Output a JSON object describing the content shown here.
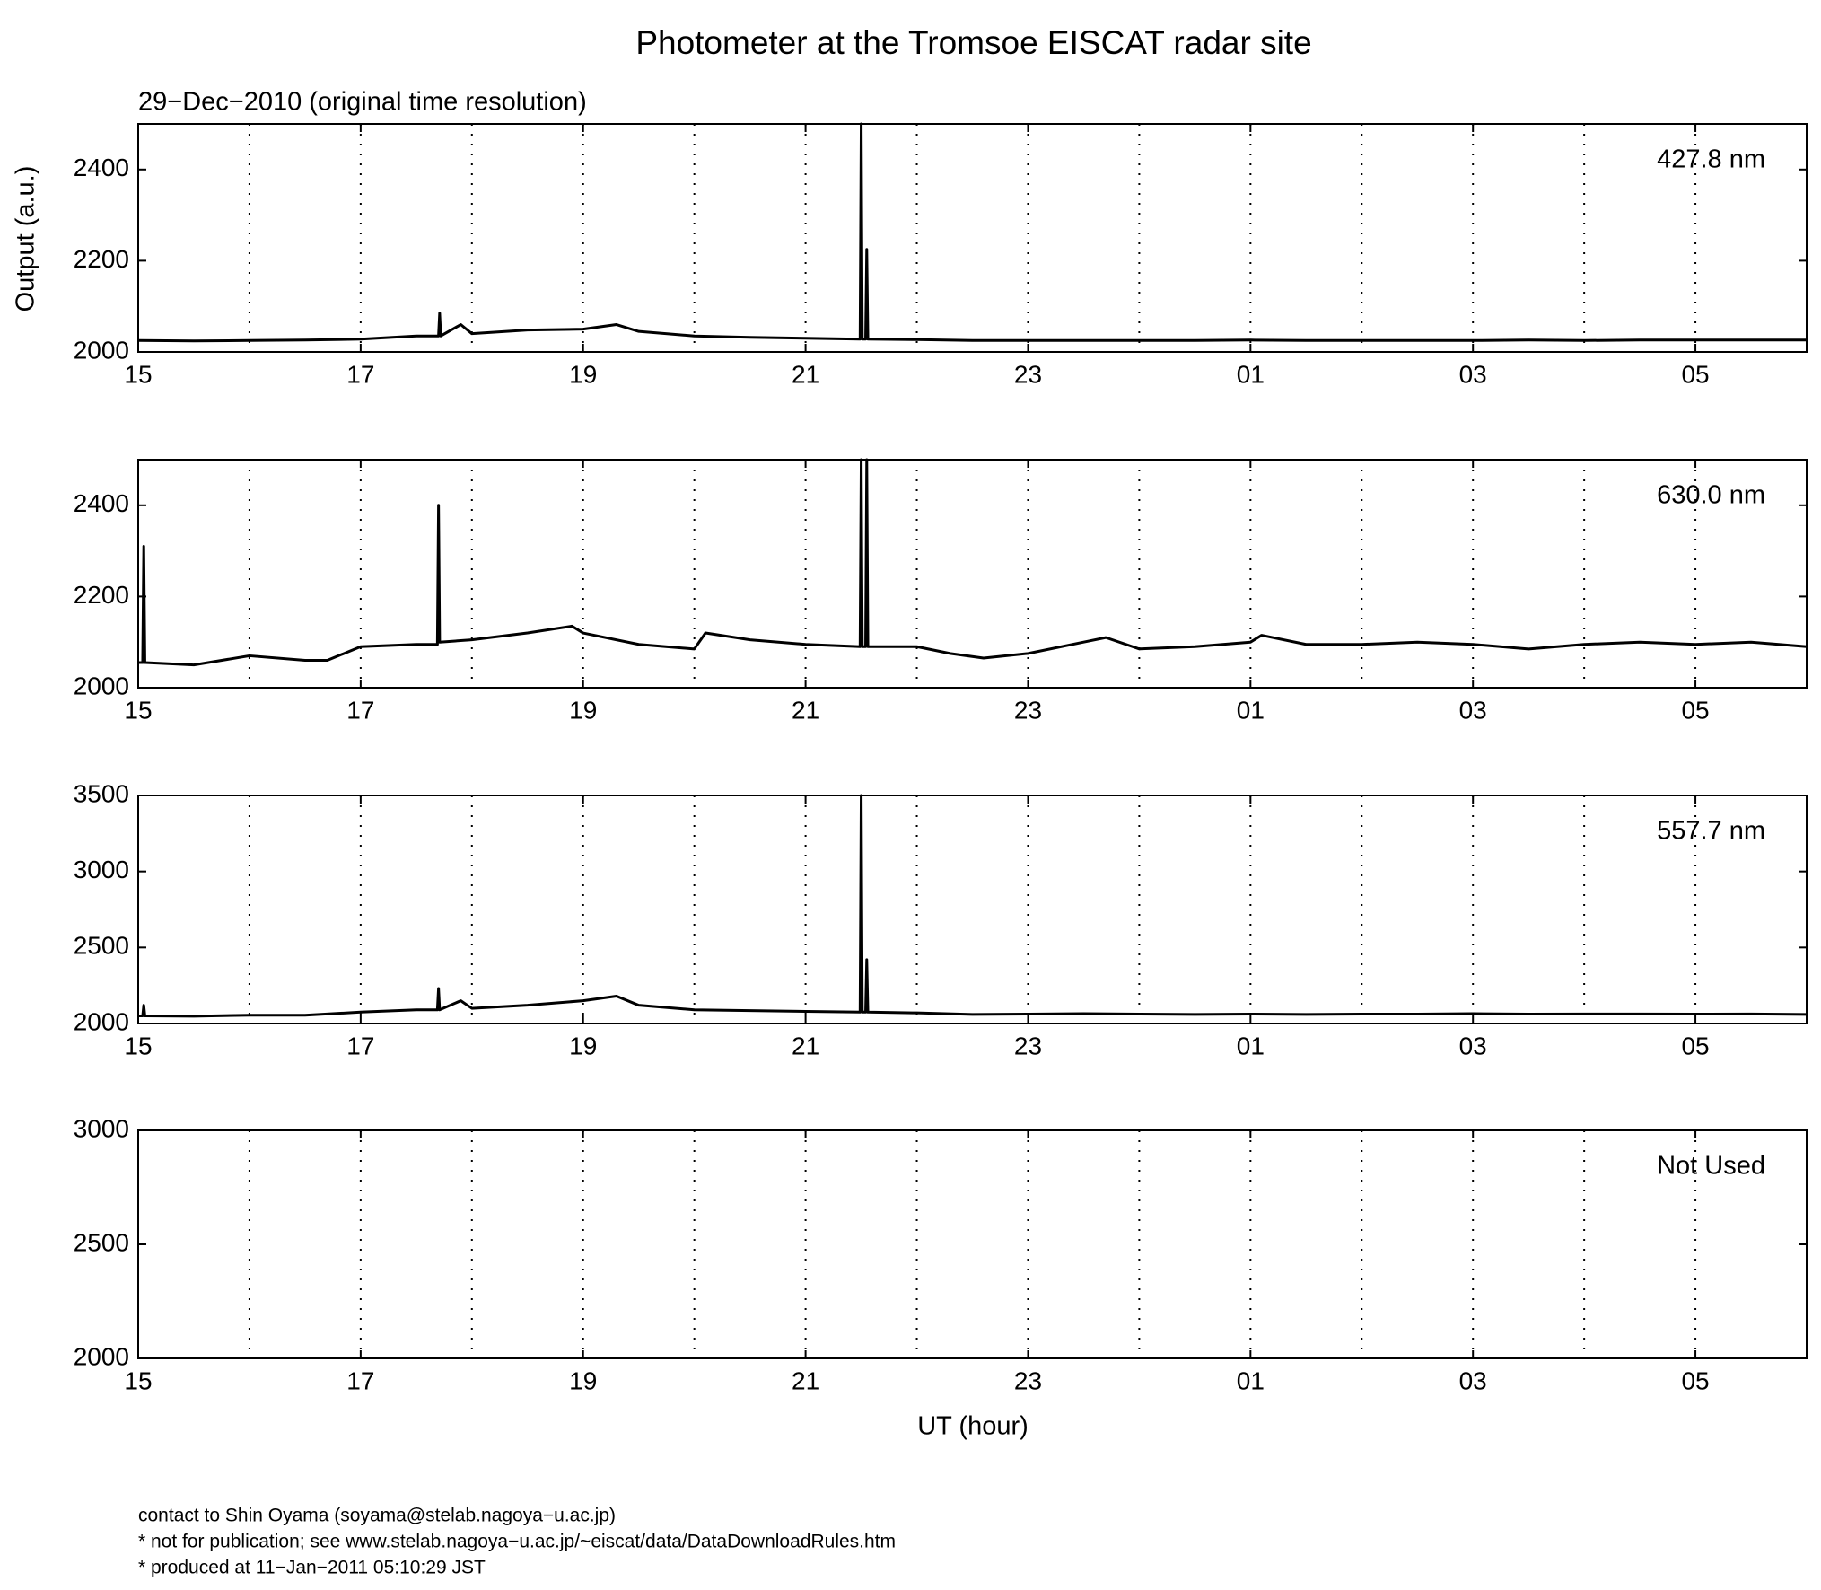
{
  "title": "Photometer at the Tromsoe EISCAT radar site",
  "subtitle": "29−Dec−2010 (original time resolution)",
  "ylabel": "Output (a.u.)",
  "xlabel": "UT (hour)",
  "footer": [
    "contact to Shin Oyama (soyama@stelab.nagoya−u.ac.jp)",
    "* not for publication; see www.stelab.nagoya−u.ac.jp/~eiscat/data/DataDownloadRules.htm",
    "* produced at 11−Jan−2011 05:10:29 JST"
  ],
  "chart_data": [
    {
      "type": "line",
      "label": "427.8 nm",
      "color": "#000000",
      "xlim": [
        15,
        30
      ],
      "ylim": [
        2000,
        2500
      ],
      "xticks": [
        15,
        17,
        19,
        21,
        23,
        {
          "value": 25,
          "label": "01"
        },
        {
          "value": 27,
          "label": "03"
        },
        {
          "value": 29,
          "label": "05"
        }
      ],
      "minor_xgrid": [
        16,
        18,
        20,
        22,
        24,
        26,
        28
      ],
      "yticks": [
        2000,
        2200,
        2400
      ],
      "x": [
        15,
        15.5,
        16,
        16.5,
        17,
        17.5,
        17.7,
        17.71,
        17.72,
        17.9,
        18,
        18.5,
        19,
        19.3,
        19.5,
        20,
        20.5,
        21,
        21.49,
        21.5,
        21.51,
        21.54,
        21.55,
        21.56,
        22,
        22.5,
        23,
        23.5,
        24,
        24.5,
        25,
        25.5,
        26,
        26.5,
        27,
        27.5,
        28,
        28.5,
        29,
        29.5,
        30
      ],
      "values": [
        2025,
        2024,
        2025,
        2026,
        2028,
        2035,
        2035,
        2085,
        2035,
        2060,
        2040,
        2048,
        2050,
        2060,
        2045,
        2035,
        2032,
        2030,
        2028,
        2500,
        2028,
        2028,
        2225,
        2028,
        2027,
        2025,
        2025,
        2025,
        2025,
        2025,
        2026,
        2025,
        2025,
        2025,
        2025,
        2026,
        2025,
        2026,
        2026,
        2026,
        2026
      ]
    },
    {
      "type": "line",
      "label": "630.0 nm",
      "color": "#000000",
      "xlim": [
        15,
        30
      ],
      "ylim": [
        2000,
        2500
      ],
      "xticks": [
        15,
        17,
        19,
        21,
        23,
        {
          "value": 25,
          "label": "01"
        },
        {
          "value": 27,
          "label": "03"
        },
        {
          "value": 29,
          "label": "05"
        }
      ],
      "minor_xgrid": [
        16,
        18,
        20,
        22,
        24,
        26,
        28
      ],
      "yticks": [
        2000,
        2200,
        2400
      ],
      "x": [
        15,
        15.04,
        15.05,
        15.06,
        15.5,
        16,
        16.5,
        16.7,
        17,
        17.5,
        17.69,
        17.7,
        17.71,
        18,
        18.5,
        18.9,
        19,
        19.5,
        20,
        20.1,
        20.5,
        21,
        21.49,
        21.5,
        21.51,
        21.54,
        21.55,
        21.56,
        22,
        22.3,
        22.6,
        23,
        23.5,
        23.7,
        24,
        24.5,
        25,
        25.1,
        25.5,
        26,
        26.5,
        27,
        27.5,
        28,
        28.5,
        29,
        29.5,
        30
      ],
      "values": [
        2055,
        2055,
        2310,
        2055,
        2050,
        2070,
        2060,
        2060,
        2090,
        2095,
        2095,
        2400,
        2100,
        2105,
        2120,
        2135,
        2120,
        2095,
        2085,
        2120,
        2105,
        2095,
        2090,
        2500,
        2090,
        2090,
        2500,
        2090,
        2090,
        2075,
        2065,
        2075,
        2100,
        2110,
        2085,
        2090,
        2100,
        2115,
        2095,
        2095,
        2100,
        2095,
        2085,
        2095,
        2100,
        2095,
        2100,
        2090
      ]
    },
    {
      "type": "line",
      "label": "557.7 nm",
      "color": "#000000",
      "xlim": [
        15,
        30
      ],
      "ylim": [
        2000,
        3500
      ],
      "xticks": [
        15,
        17,
        19,
        21,
        23,
        {
          "value": 25,
          "label": "01"
        },
        {
          "value": 27,
          "label": "03"
        },
        {
          "value": 29,
          "label": "05"
        }
      ],
      "minor_xgrid": [
        16,
        18,
        20,
        22,
        24,
        26,
        28
      ],
      "yticks": [
        2000,
        2500,
        3000,
        3500
      ],
      "x": [
        15,
        15.04,
        15.05,
        15.06,
        15.5,
        16,
        16.5,
        17,
        17.5,
        17.69,
        17.7,
        17.71,
        17.9,
        18,
        18.5,
        19,
        19.3,
        19.5,
        20,
        20.5,
        21,
        21.49,
        21.5,
        21.51,
        21.54,
        21.55,
        21.56,
        22,
        22.5,
        23,
        23.5,
        24,
        24.5,
        25,
        25.5,
        26,
        26.5,
        27,
        27.5,
        28,
        28.5,
        29,
        29.5,
        30
      ],
      "values": [
        2050,
        2050,
        2120,
        2050,
        2048,
        2055,
        2055,
        2075,
        2090,
        2090,
        2230,
        2090,
        2150,
        2100,
        2120,
        2150,
        2180,
        2120,
        2090,
        2085,
        2080,
        2075,
        3500,
        2075,
        2075,
        2420,
        2075,
        2070,
        2060,
        2062,
        2065,
        2062,
        2060,
        2062,
        2060,
        2062,
        2062,
        2065,
        2062,
        2063,
        2063,
        2062,
        2063,
        2060
      ]
    },
    {
      "type": "empty",
      "label": "Not Used",
      "xlim": [
        15,
        30
      ],
      "ylim": [
        2000,
        3000
      ],
      "xticks": [
        15,
        17,
        19,
        21,
        23,
        {
          "value": 25,
          "label": "01"
        },
        {
          "value": 27,
          "label": "03"
        },
        {
          "value": 29,
          "label": "05"
        }
      ],
      "minor_xgrid": [
        16,
        18,
        20,
        22,
        24,
        26,
        28
      ],
      "yticks": [
        2000,
        2500,
        3000
      ]
    }
  ]
}
